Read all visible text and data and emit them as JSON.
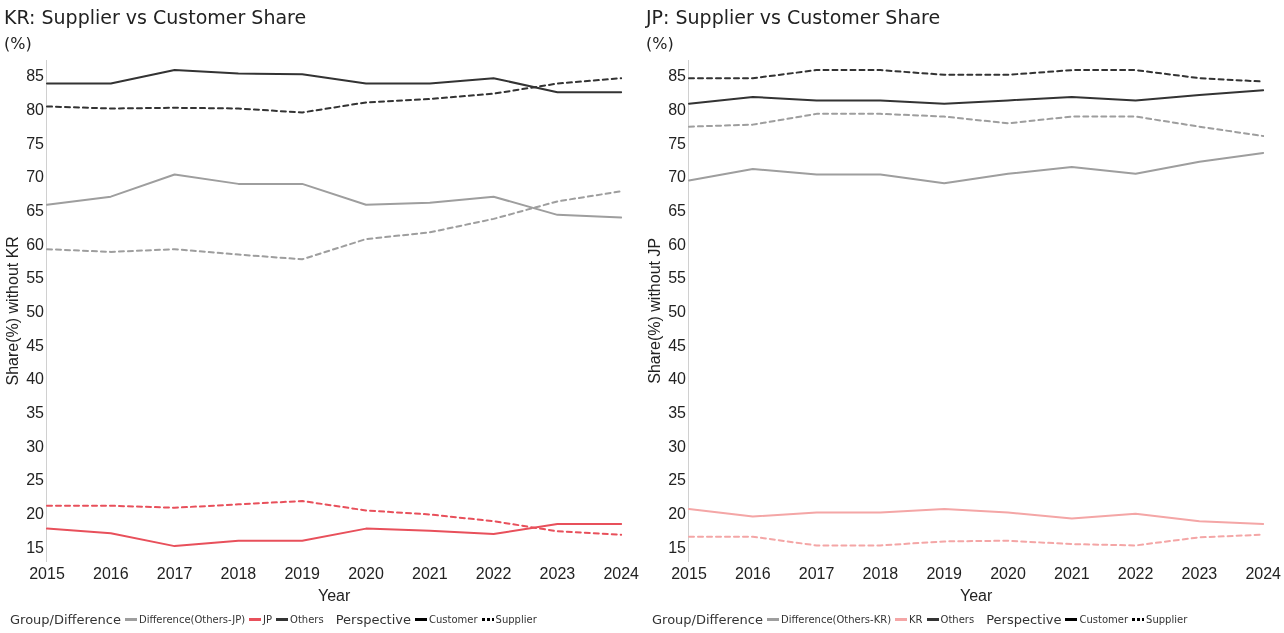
{
  "chart_data": [
    {
      "type": "line",
      "title": "KR: Supplier vs Customer Share",
      "subtitle": "(%)",
      "xlabel": "Year",
      "ylabel": "Share(%) without KR",
      "legend_title": "Group/Difference",
      "annotations": [
        "Perspective",
        "Customer",
        "Supplier"
      ],
      "categories": [
        "2015",
        "2016",
        "2017",
        "2018",
        "2019",
        "2020",
        "2021",
        "2022",
        "2023",
        "2024"
      ],
      "ylim": [
        13,
        87.5
      ],
      "yticks": [
        15,
        20,
        25,
        30,
        35,
        40,
        45,
        50,
        55,
        60,
        65,
        70,
        75,
        80,
        85
      ],
      "grid": false,
      "legend": "bottom",
      "marker": "none",
      "series": [
        {
          "name": "Difference(Others-JP)",
          "color": "#9e9e9e",
          "line_style": "solid",
          "values": [
            66,
            67.2,
            70.5,
            69.1,
            69.1,
            66,
            66.3,
            67.2,
            64.5,
            64.1
          ]
        },
        {
          "color": "#9e9e9e",
          "line_style": "dashed",
          "values": [
            59.4,
            59,
            59.4,
            58.6,
            57.9,
            60.9,
            61.9,
            63.9,
            66.5,
            68
          ]
        },
        {
          "name": "JP",
          "color": "#e8505b",
          "line_style": "solid",
          "values": [
            17.9,
            17.2,
            15.3,
            16.1,
            16.1,
            17.9,
            17.6,
            17.1,
            18.6,
            18.6
          ]
        },
        {
          "color": "#e8505b",
          "line_style": "dashed",
          "values": [
            21.3,
            21.3,
            21,
            21.5,
            22,
            20.6,
            20,
            19,
            17.5,
            17
          ]
        },
        {
          "name": "Others",
          "color": "#333333",
          "line_style": "solid",
          "values": [
            84,
            84,
            86,
            85.5,
            85.4,
            84,
            84,
            84.8,
            82.7,
            82.7
          ]
        },
        {
          "color": "#333333",
          "line_style": "dashed",
          "values": [
            80.6,
            80.3,
            80.4,
            80.3,
            79.7,
            81.2,
            81.7,
            82.5,
            84,
            84.8
          ]
        }
      ]
    },
    {
      "type": "line",
      "title": "JP: Supplier vs Customer Share",
      "subtitle": "(%)",
      "xlabel": "Year",
      "ylabel": "Share(%) without JP",
      "legend_title": "Group/Difference",
      "annotations": [
        "Perspective",
        "Customer",
        "Supplier"
      ],
      "categories": [
        "2015",
        "2016",
        "2017",
        "2018",
        "2019",
        "2020",
        "2021",
        "2022",
        "2023",
        "2024"
      ],
      "ylim": [
        13,
        87.5
      ],
      "yticks": [
        15,
        20,
        25,
        30,
        35,
        40,
        45,
        50,
        55,
        60,
        65,
        70,
        75,
        80,
        85
      ],
      "grid": false,
      "legend": "bottom",
      "marker": "none",
      "series": [
        {
          "name": "Difference(Others-KR)",
          "color": "#9e9e9e",
          "line_style": "solid",
          "values": [
            69.6,
            71.3,
            70.5,
            70.5,
            69.2,
            70.6,
            71.6,
            70.6,
            72.4,
            73.7
          ]
        },
        {
          "color": "#9e9e9e",
          "line_style": "dashed",
          "values": [
            77.6,
            77.9,
            79.5,
            79.5,
            79.1,
            78.1,
            79.1,
            79.1,
            77.6,
            76.2
          ]
        },
        {
          "name": "KR",
          "color": "#f4a6a6",
          "line_style": "solid",
          "values": [
            20.8,
            19.7,
            20.3,
            20.3,
            20.8,
            20.3,
            19.4,
            20.1,
            19,
            18.6
          ]
        },
        {
          "color": "#f4a6a6",
          "line_style": "dashed",
          "values": [
            16.7,
            16.7,
            15.4,
            15.4,
            16,
            16.1,
            15.6,
            15.4,
            16.6,
            17
          ]
        },
        {
          "name": "Others",
          "color": "#333333",
          "line_style": "solid",
          "values": [
            81,
            82,
            81.5,
            81.5,
            81,
            81.5,
            82,
            81.5,
            82.3,
            83
          ]
        },
        {
          "color": "#333333",
          "line_style": "dashed",
          "values": [
            84.8,
            84.8,
            86,
            86,
            85.3,
            85.3,
            86,
            86,
            84.8,
            84.3
          ]
        }
      ]
    }
  ]
}
